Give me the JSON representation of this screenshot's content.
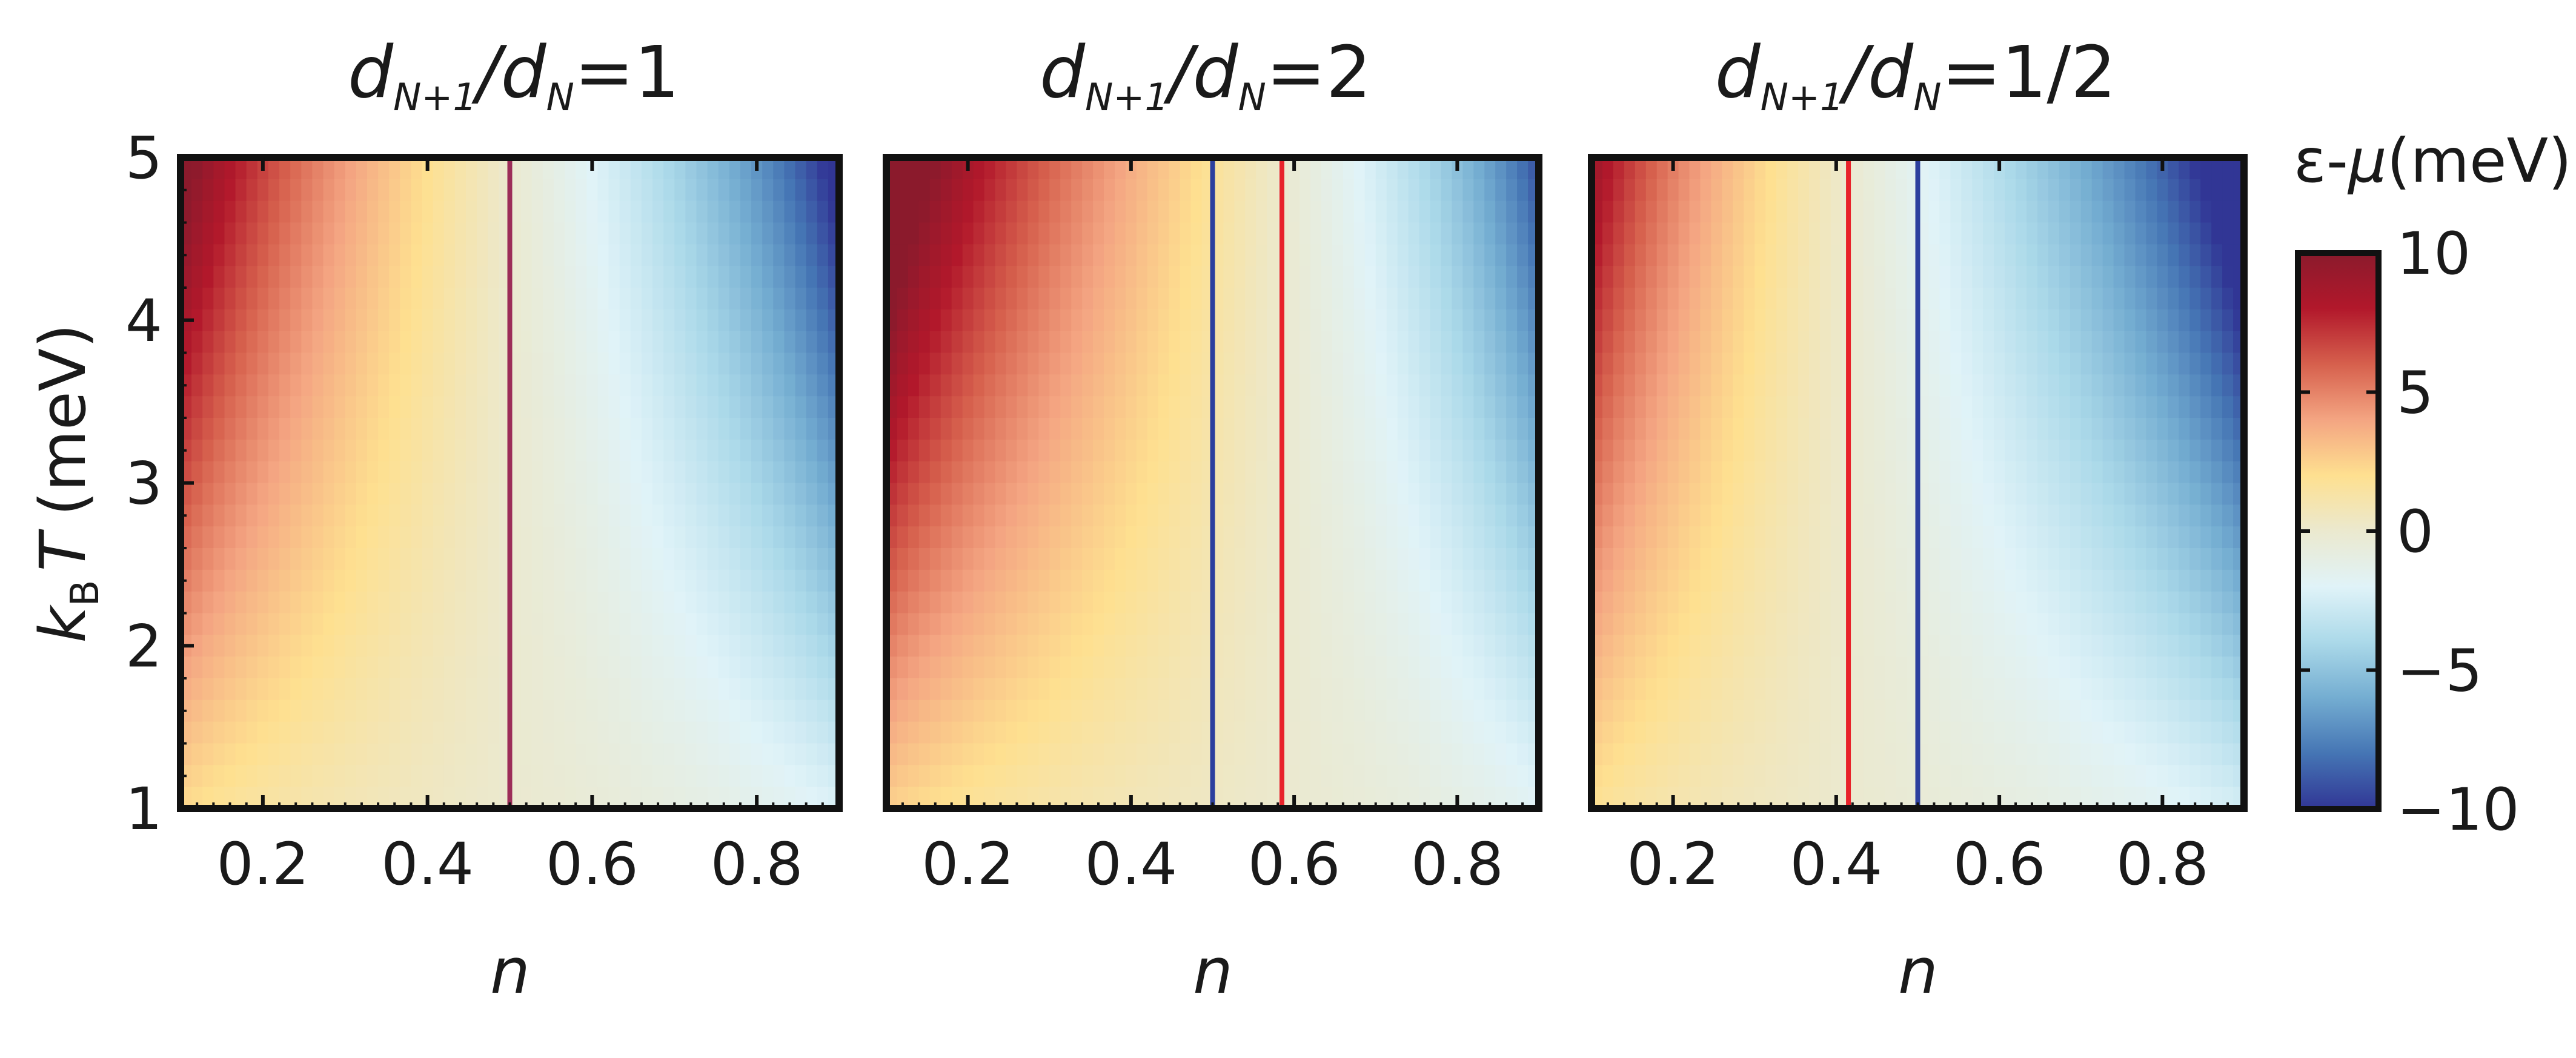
{
  "colors": {
    "colormap": [
      "#313695",
      "#4575b4",
      "#74add1",
      "#abd9e9",
      "#e0f3f8",
      "#ebe9cf",
      "#fee090",
      "#f4a582",
      "#d6604d",
      "#b2182b",
      "#8b1a2c"
    ],
    "blue_line": "#2c3f9e",
    "red_line": "#e8222a",
    "frame": "#111111"
  },
  "chart_data": [
    {
      "type": "heatmap",
      "title_prefix": "d",
      "title_sub1": "N+1",
      "title_slash": "/d",
      "title_sub2": "N",
      "title_suffix": "=1",
      "xlabel": "n",
      "ylabel_k": "k",
      "ylabel_sub": "B",
      "ylabel_T": "T",
      "ylabel_unit": "(meV)",
      "xlim": [
        0.1,
        0.9
      ],
      "ylim": [
        1,
        5
      ],
      "x_ticks": [
        "0.2",
        "0.4",
        "0.6",
        "0.8"
      ],
      "y_ticks": [
        "1",
        "2",
        "3",
        "4",
        "5"
      ],
      "ratio": 1,
      "vertical_lines": [
        {
          "color": "blue",
          "x": 0.5
        },
        {
          "color": "red",
          "x": 0.5
        }
      ]
    },
    {
      "type": "heatmap",
      "title_prefix": "d",
      "title_sub1": "N+1",
      "title_slash": "/d",
      "title_sub2": "N",
      "title_suffix": "=2",
      "xlabel": "n",
      "xlim": [
        0.1,
        0.9
      ],
      "ylim": [
        1,
        5
      ],
      "x_ticks": [
        "0.2",
        "0.4",
        "0.6",
        "0.8"
      ],
      "ratio": 2,
      "vertical_lines": [
        {
          "color": "blue",
          "x": 0.5
        },
        {
          "color": "red",
          "x": 0.585
        }
      ]
    },
    {
      "type": "heatmap",
      "title_prefix": "d",
      "title_sub1": "N+1",
      "title_slash": "/d",
      "title_sub2": "N",
      "title_suffix": "=1/2",
      "xlabel": "n",
      "xlim": [
        0.1,
        0.9
      ],
      "ylim": [
        1,
        5
      ],
      "x_ticks": [
        "0.2",
        "0.4",
        "0.6",
        "0.8"
      ],
      "ratio": 0.5,
      "vertical_lines": [
        {
          "color": "red",
          "x": 0.415
        },
        {
          "color": "blue",
          "x": 0.5
        }
      ]
    }
  ],
  "colorbar": {
    "title_eps": "ε-",
    "title_mu": "μ",
    "title_unit": "(meV)",
    "range": [
      -10,
      10
    ],
    "ticks": [
      "10",
      "5",
      "0",
      "−5",
      "−10"
    ]
  }
}
